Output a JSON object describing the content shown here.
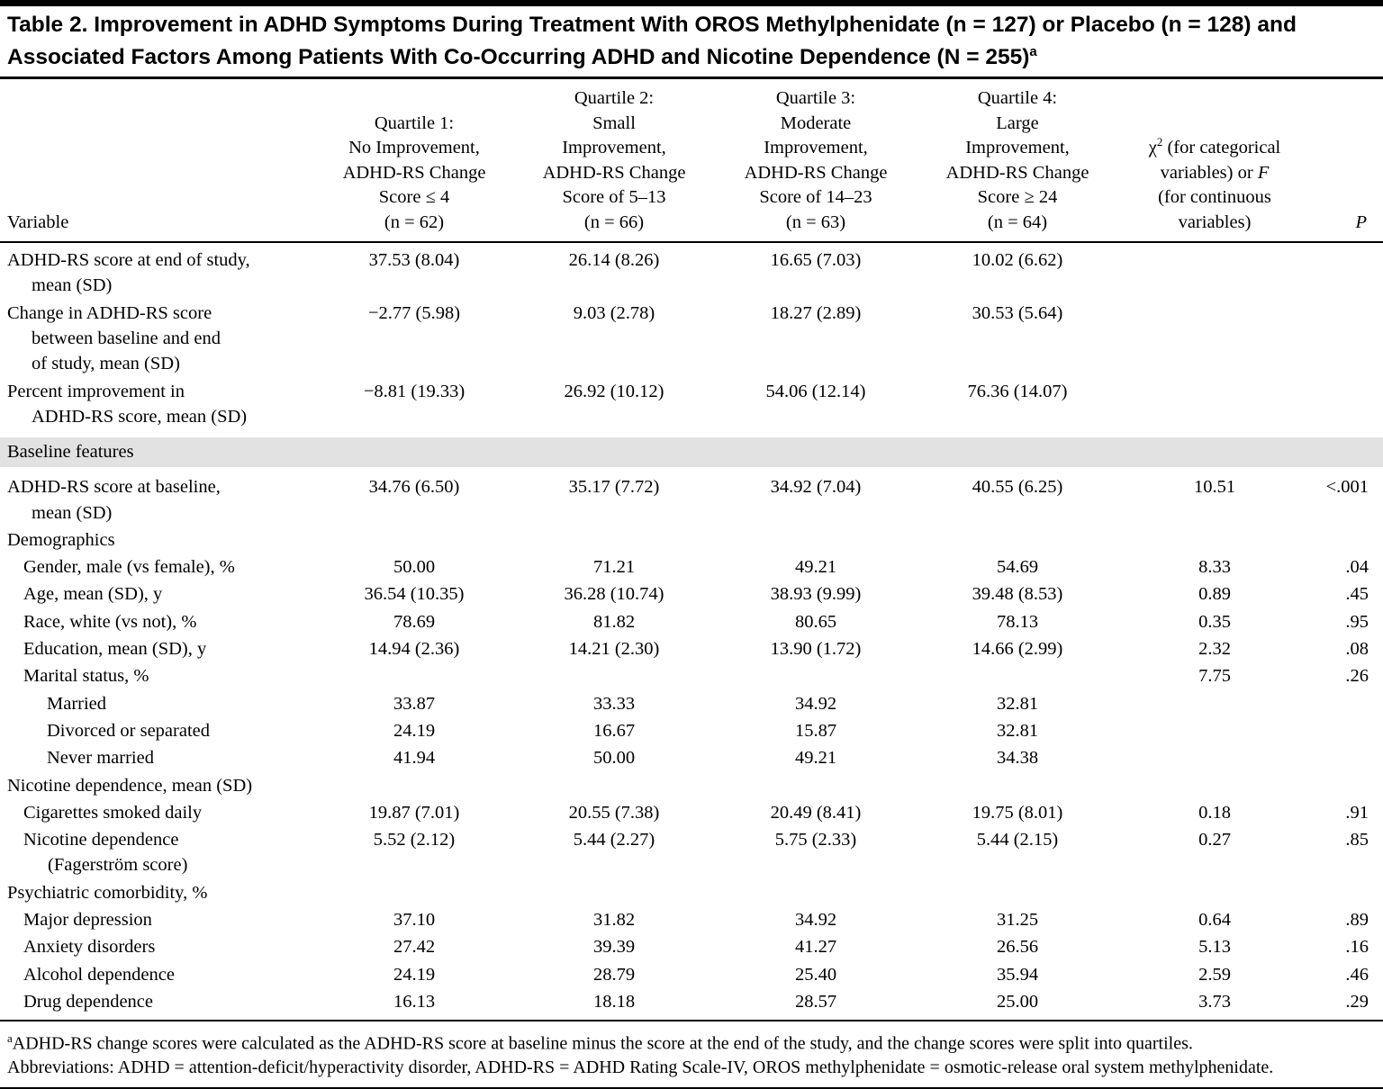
{
  "title": "Table 2. Improvement in ADHD Symptoms During Treatment With OROS Methylphenidate (n = 127) or Placebo (n = 128) and Associated Factors Among Patients With Co-Occurring ADHD and Nicotine Dependence (N = 255)",
  "title_sup": "a",
  "colors": {
    "background": "#ffffff",
    "text": "#000000",
    "rule": "#000000",
    "section_band": "#e2e2e2"
  },
  "columns": {
    "variable_header": "Variable",
    "quartiles": [
      {
        "lines": [
          "Quartile 1:",
          "No Improvement,",
          "ADHD-RS Change",
          "Score ≤ 4",
          "(n = 62)"
        ]
      },
      {
        "lines": [
          "Quartile 2:",
          "Small",
          "Improvement,",
          "ADHD-RS Change",
          "Score of 5–13",
          "(n = 66)"
        ]
      },
      {
        "lines": [
          "Quartile 3:",
          "Moderate",
          "Improvement,",
          "ADHD-RS Change",
          "Score of 14–23",
          "(n = 63)"
        ]
      },
      {
        "lines": [
          "Quartile 4:",
          "Large",
          "Improvement,",
          "ADHD-RS Change",
          "Score ≥ 24",
          "(n = 64)"
        ]
      }
    ],
    "stat_header": {
      "chi": "χ",
      "chi_sup": "2",
      "line1_rest": " (for categorical",
      "line2_pre": "variables) or ",
      "f": "F",
      "line3": "(for continuous",
      "line4": "variables)"
    },
    "p_header": "P"
  },
  "rows": [
    {
      "type": "data",
      "indent": 0,
      "label": "ADHD-RS score at end of study,",
      "cont": [
        "mean (SD)"
      ],
      "values": [
        "37.53 (8.04)",
        "26.14 (8.26)",
        "16.65 (7.03)",
        "10.02 (6.62)",
        "",
        ""
      ]
    },
    {
      "type": "data",
      "indent": 0,
      "label": "Change in ADHD-RS score",
      "cont": [
        "between baseline and end",
        "of study, mean (SD)"
      ],
      "values": [
        "−2.77 (5.98)",
        "9.03 (2.78)",
        "18.27 (2.89)",
        "30.53 (5.64)",
        "",
        ""
      ]
    },
    {
      "type": "data",
      "indent": 0,
      "label": "Percent improvement in",
      "cont": [
        "ADHD-RS score, mean (SD)"
      ],
      "values": [
        "−8.81 (19.33)",
        "26.92 (10.12)",
        "54.06 (12.14)",
        "76.36 (14.07)",
        "",
        ""
      ]
    },
    {
      "type": "section",
      "label": "Baseline features"
    },
    {
      "type": "data",
      "indent": 0,
      "label": "ADHD-RS score at baseline,",
      "cont": [
        "mean (SD)"
      ],
      "values": [
        "34.76 (6.50)",
        "35.17 (7.72)",
        "34.92 (7.04)",
        "40.55 (6.25)",
        "10.51",
        "<.001"
      ]
    },
    {
      "type": "data",
      "indent": 0,
      "label": "Demographics",
      "cont": [],
      "values": [
        "",
        "",
        "",
        "",
        "",
        ""
      ]
    },
    {
      "type": "data",
      "indent": 1,
      "label": "Gender, male (vs female), %",
      "cont": [],
      "values": [
        "50.00",
        "71.21",
        "49.21",
        "54.69",
        "8.33",
        ".04"
      ]
    },
    {
      "type": "data",
      "indent": 1,
      "label": "Age, mean (SD), y",
      "cont": [],
      "values": [
        "36.54 (10.35)",
        "36.28 (10.74)",
        "38.93 (9.99)",
        "39.48 (8.53)",
        "0.89",
        ".45"
      ]
    },
    {
      "type": "data",
      "indent": 1,
      "label": "Race, white (vs not), %",
      "cont": [],
      "values": [
        "78.69",
        "81.82",
        "80.65",
        "78.13",
        "0.35",
        ".95"
      ]
    },
    {
      "type": "data",
      "indent": 1,
      "label": "Education, mean (SD), y",
      "cont": [],
      "values": [
        "14.94 (2.36)",
        "14.21 (2.30)",
        "13.90 (1.72)",
        "14.66 (2.99)",
        "2.32",
        ".08"
      ]
    },
    {
      "type": "data",
      "indent": 1,
      "label": "Marital status, %",
      "cont": [],
      "values": [
        "",
        "",
        "",
        "",
        "7.75",
        ".26"
      ]
    },
    {
      "type": "data",
      "indent": 2,
      "label": "Married",
      "cont": [],
      "values": [
        "33.87",
        "33.33",
        "34.92",
        "32.81",
        "",
        ""
      ]
    },
    {
      "type": "data",
      "indent": 2,
      "label": "Divorced or separated",
      "cont": [],
      "values": [
        "24.19",
        "16.67",
        "15.87",
        "32.81",
        "",
        ""
      ]
    },
    {
      "type": "data",
      "indent": 2,
      "label": "Never married",
      "cont": [],
      "values": [
        "41.94",
        "50.00",
        "49.21",
        "34.38",
        "",
        ""
      ]
    },
    {
      "type": "data",
      "indent": 0,
      "label": "Nicotine dependence, mean (SD)",
      "cont": [],
      "values": [
        "",
        "",
        "",
        "",
        "",
        ""
      ]
    },
    {
      "type": "data",
      "indent": 1,
      "label": "Cigarettes smoked daily",
      "cont": [],
      "values": [
        "19.87 (7.01)",
        "20.55 (7.38)",
        "20.49 (8.41)",
        "19.75 (8.01)",
        "0.18",
        ".91"
      ]
    },
    {
      "type": "data",
      "indent": 1,
      "label": "Nicotine dependence",
      "cont": [
        "(Fagerström score)"
      ],
      "values": [
        "5.52 (2.12)",
        "5.44 (2.27)",
        "5.75 (2.33)",
        "5.44 (2.15)",
        "0.27",
        ".85"
      ]
    },
    {
      "type": "data",
      "indent": 0,
      "label": "Psychiatric comorbidity, %",
      "cont": [],
      "values": [
        "",
        "",
        "",
        "",
        "",
        ""
      ]
    },
    {
      "type": "data",
      "indent": 1,
      "label": "Major depression",
      "cont": [],
      "values": [
        "37.10",
        "31.82",
        "34.92",
        "31.25",
        "0.64",
        ".89"
      ]
    },
    {
      "type": "data",
      "indent": 1,
      "label": "Anxiety disorders",
      "cont": [],
      "values": [
        "27.42",
        "39.39",
        "41.27",
        "26.56",
        "5.13",
        ".16"
      ]
    },
    {
      "type": "data",
      "indent": 1,
      "label": "Alcohol dependence",
      "cont": [],
      "values": [
        "24.19",
        "28.79",
        "25.40",
        "35.94",
        "2.59",
        ".46"
      ]
    },
    {
      "type": "data",
      "indent": 1,
      "label": "Drug dependence",
      "cont": [],
      "values": [
        "16.13",
        "18.18",
        "28.57",
        "25.00",
        "3.73",
        ".29"
      ]
    }
  ],
  "footnotes": [
    {
      "marker": "a",
      "text": "ADHD-RS change scores were calculated as the ADHD-RS score at baseline minus the score at the end of the study, and the change scores were split into quartiles."
    },
    {
      "marker": "",
      "text": "Abbreviations: ADHD = attention-deficit/hyperactivity disorder, ADHD-RS = ADHD Rating Scale-IV, OROS methylphenidate = osmotic-release oral system methylphenidate."
    }
  ]
}
